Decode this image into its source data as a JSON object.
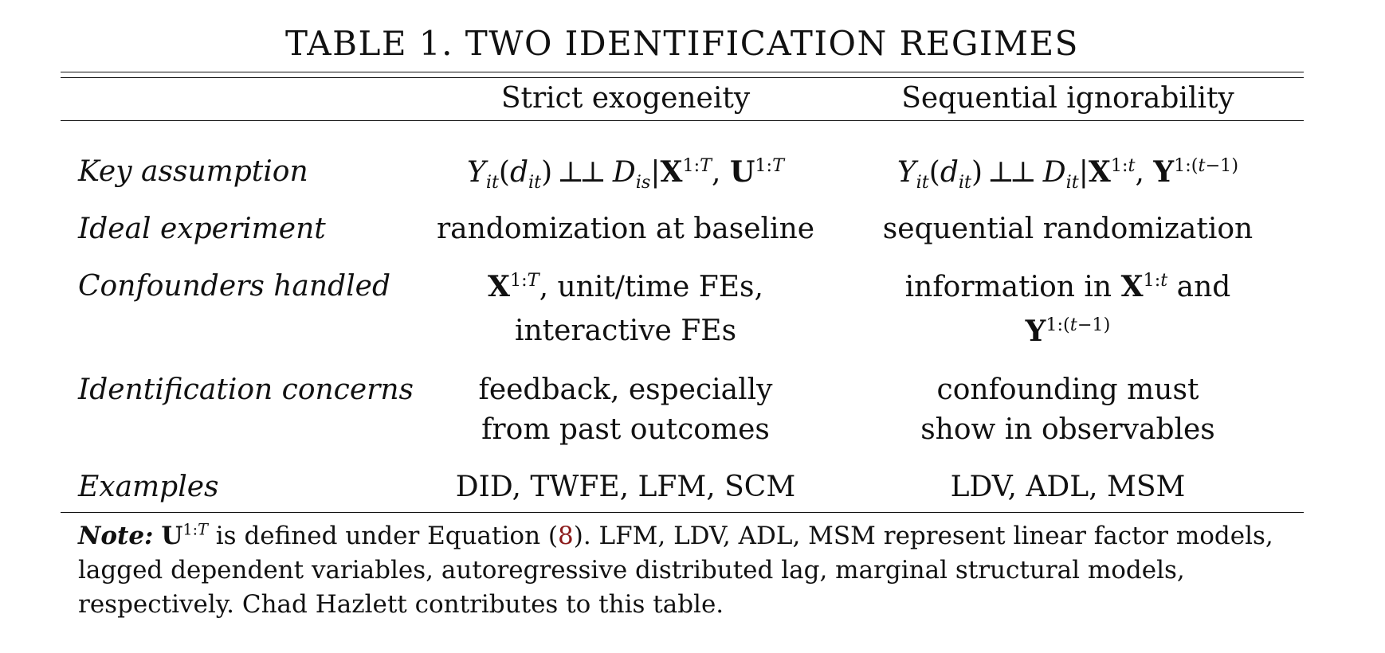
{
  "table": {
    "title": "TABLE 1. TWO IDENTIFICATION REGIMES",
    "columns": [
      "Strict exogeneity",
      "Sequential ignorability"
    ],
    "rows": [
      {
        "label": "Key assumption",
        "strict": "Yit(dit) ⫫ Dis|Xi1:T, Ui1:T",
        "sequential": "Yit(dit) ⫫ Dit|Xi1:t, Yi1:(t−1)"
      },
      {
        "label": "Ideal experiment",
        "strict": "randomization at baseline",
        "sequential": "sequential randomization"
      },
      {
        "label": "Confounders handled",
        "strict_line1_suffix": ", unit/time FEs,",
        "strict_line2": "interactive FEs",
        "sequential_line1_prefix": "information in",
        "sequential_line1_suffix": "and"
      },
      {
        "label": "Identification concerns",
        "strict_line1": "feedback, especially",
        "strict_line2": "from past outcomes",
        "sequential_line1": "confounding must",
        "sequential_line2": "show in observables"
      },
      {
        "label": "Examples",
        "strict": "DID, TWFE, LFM, SCM",
        "sequential": "LDV, ADL, MSM"
      }
    ],
    "note": {
      "lead": "Note:",
      "part1": "is defined under Equation (",
      "eq_ref": "8",
      "part2": "). LFM, LDV, ADL, MSM represent linear factor models, lagged dependent variables, autoregressive distributed lag, marginal structural models, respectively. Chad Hazlett contributes to this table."
    }
  }
}
